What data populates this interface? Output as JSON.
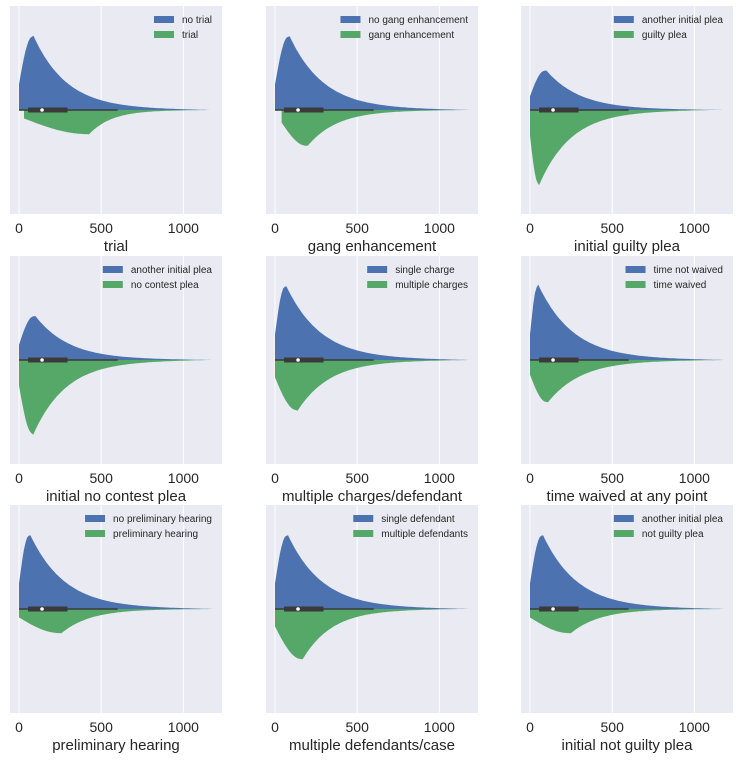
{
  "colors": {
    "series_a": "#4c72b0",
    "series_b": "#55a868",
    "panel_bg": "#eaeaf2",
    "box": "#3a3a3a",
    "median": "#ffffff"
  },
  "chart_data": [
    {
      "type": "violin",
      "xlabel": "trial",
      "xticks": [
        0,
        500,
        1000
      ],
      "xlim": [
        -55,
        1235
      ],
      "series": [
        {
          "name": "no trial",
          "min": 0,
          "max": 1170,
          "peak": 80,
          "peak_height": 0.82
        },
        {
          "name": "trial",
          "min": 30,
          "max": 1160,
          "peak": 420,
          "peak_height": 0.27
        }
      ],
      "box": {
        "q1": 55,
        "median": 140,
        "q3": 295,
        "whisker_low": 0,
        "whisker_high": 600
      },
      "legend": "top-right"
    },
    {
      "type": "violin",
      "xlabel": "gang enhancement",
      "xticks": [
        0,
        500,
        1000
      ],
      "xlim": [
        -55,
        1235
      ],
      "series": [
        {
          "name": "no gang enhancement",
          "min": 0,
          "max": 1190,
          "peak": 80,
          "peak_height": 0.82
        },
        {
          "name": "gang enhancement",
          "min": 40,
          "max": 1160,
          "peak": 190,
          "peak_height": 0.4
        }
      ],
      "box": {
        "q1": 55,
        "median": 140,
        "q3": 295,
        "whisker_low": 0,
        "whisker_high": 600
      },
      "legend": "top-right"
    },
    {
      "type": "violin",
      "xlabel": "initial guilty plea",
      "xticks": [
        0,
        500,
        1000
      ],
      "xlim": [
        -55,
        1235
      ],
      "series": [
        {
          "name": "another initial plea",
          "min": 0,
          "max": 1190,
          "peak": 90,
          "peak_height": 0.44
        },
        {
          "name": "guilty plea",
          "min": 0,
          "max": 1100,
          "peak": 50,
          "peak_height": 0.82
        }
      ],
      "box": {
        "q1": 55,
        "median": 140,
        "q3": 295,
        "whisker_low": 0,
        "whisker_high": 600
      },
      "legend": "top-right"
    },
    {
      "type": "violin",
      "xlabel": "initial no contest plea",
      "xticks": [
        0,
        500,
        1000
      ],
      "xlim": [
        -55,
        1235
      ],
      "series": [
        {
          "name": "another initial plea",
          "min": 0,
          "max": 1190,
          "peak": 90,
          "peak_height": 0.49
        },
        {
          "name": "no contest plea",
          "min": 0,
          "max": 1150,
          "peak": 80,
          "peak_height": 0.82
        }
      ],
      "box": {
        "q1": 55,
        "median": 140,
        "q3": 295,
        "whisker_low": 0,
        "whisker_high": 600
      },
      "legend": "top-right"
    },
    {
      "type": "violin",
      "xlabel": "multiple charges/defendant",
      "xticks": [
        0,
        500,
        1000
      ],
      "xlim": [
        -55,
        1235
      ],
      "series": [
        {
          "name": "single charge",
          "min": 0,
          "max": 1190,
          "peak": 60,
          "peak_height": 0.82
        },
        {
          "name": "multiple charges",
          "min": 0,
          "max": 1180,
          "peak": 130,
          "peak_height": 0.56
        }
      ],
      "box": {
        "q1": 55,
        "median": 140,
        "q3": 295,
        "whisker_low": 0,
        "whisker_high": 600
      },
      "legend": "top-right"
    },
    {
      "type": "violin",
      "xlabel": "time waived at any point",
      "xticks": [
        0,
        500,
        1000
      ],
      "xlim": [
        -55,
        1235
      ],
      "series": [
        {
          "name": "time not waived",
          "min": 0,
          "max": 1190,
          "peak": 45,
          "peak_height": 0.82
        },
        {
          "name": "time waived",
          "min": 0,
          "max": 1190,
          "peak": 100,
          "peak_height": 0.47
        }
      ],
      "box": {
        "q1": 55,
        "median": 140,
        "q3": 295,
        "whisker_low": 0,
        "whisker_high": 600
      },
      "legend": "top-right"
    },
    {
      "type": "violin",
      "xlabel": "preliminary hearing",
      "xticks": [
        0,
        500,
        1000
      ],
      "xlim": [
        -55,
        1235
      ],
      "series": [
        {
          "name": "no preliminary hearing",
          "min": 0,
          "max": 1190,
          "peak": 60,
          "peak_height": 0.82
        },
        {
          "name": "preliminary hearing",
          "min": 0,
          "max": 1190,
          "peak": 250,
          "peak_height": 0.27
        }
      ],
      "box": {
        "q1": 55,
        "median": 140,
        "q3": 295,
        "whisker_low": 0,
        "whisker_high": 600
      },
      "legend": "top-right"
    },
    {
      "type": "violin",
      "xlabel": "multiple defendants/case",
      "xticks": [
        0,
        500,
        1000
      ],
      "xlim": [
        -55,
        1235
      ],
      "series": [
        {
          "name": "single defendant",
          "min": 0,
          "max": 1190,
          "peak": 70,
          "peak_height": 0.82
        },
        {
          "name": "multiple defendants",
          "min": 0,
          "max": 1120,
          "peak": 160,
          "peak_height": 0.56
        }
      ],
      "box": {
        "q1": 55,
        "median": 140,
        "q3": 295,
        "whisker_low": 0,
        "whisker_high": 600
      },
      "legend": "top-right"
    },
    {
      "type": "violin",
      "xlabel": "initial not guilty plea",
      "xticks": [
        0,
        500,
        1000
      ],
      "xlim": [
        -55,
        1235
      ],
      "series": [
        {
          "name": "another initial plea",
          "min": 0,
          "max": 1190,
          "peak": 70,
          "peak_height": 0.82
        },
        {
          "name": "not guilty plea",
          "min": 0,
          "max": 1190,
          "peak": 240,
          "peak_height": 0.27
        }
      ],
      "box": {
        "q1": 55,
        "median": 140,
        "q3": 295,
        "whisker_low": 0,
        "whisker_high": 600
      },
      "legend": "top-right"
    }
  ]
}
